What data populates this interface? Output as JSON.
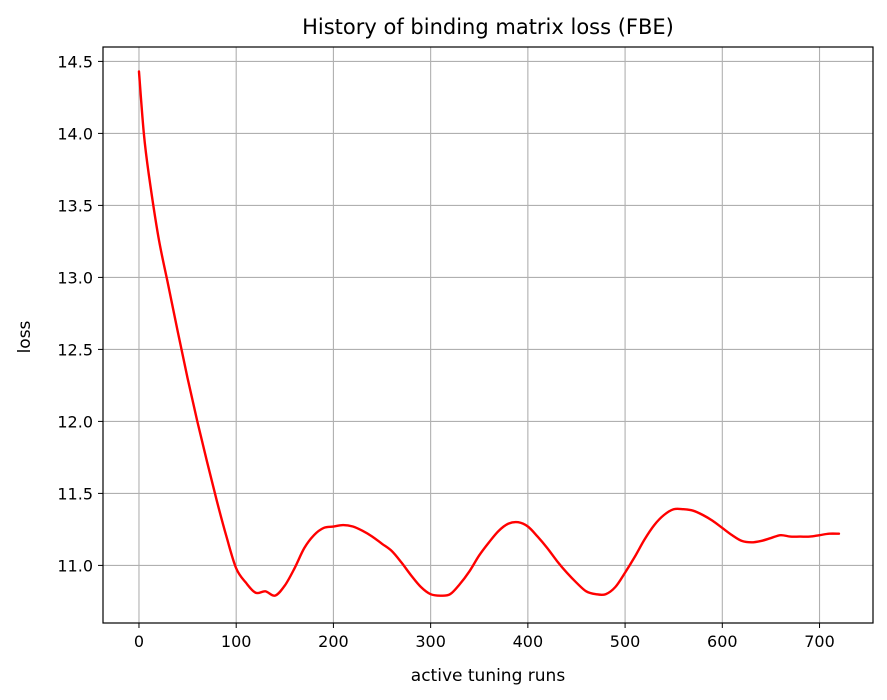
{
  "chart_data": {
    "type": "line",
    "title": "History of binding matrix loss (FBE)",
    "xlabel": "active tuning runs",
    "ylabel": "loss",
    "xlim": [
      -37,
      755
    ],
    "ylim": [
      10.6,
      14.6
    ],
    "xticks": [
      0,
      100,
      200,
      300,
      400,
      500,
      600,
      700
    ],
    "yticks": [
      11.0,
      11.5,
      12.0,
      12.5,
      13.0,
      13.5,
      14.0,
      14.5
    ],
    "ytick_labels": [
      "11.0",
      "11.5",
      "12.0",
      "12.5",
      "13.0",
      "13.5",
      "14.0",
      "14.5"
    ],
    "grid": true,
    "series": [
      {
        "color": "#ff0000",
        "x": [
          0,
          5,
          10,
          20,
          30,
          40,
          50,
          60,
          70,
          80,
          90,
          100,
          110,
          120,
          130,
          140,
          150,
          160,
          170,
          180,
          190,
          200,
          210,
          220,
          230,
          240,
          250,
          260,
          270,
          280,
          290,
          300,
          310,
          320,
          330,
          340,
          350,
          360,
          370,
          380,
          390,
          400,
          410,
          420,
          430,
          440,
          450,
          460,
          470,
          480,
          490,
          500,
          510,
          520,
          530,
          540,
          550,
          560,
          570,
          580,
          590,
          600,
          610,
          620,
          630,
          640,
          650,
          660,
          670,
          680,
          690,
          700,
          710,
          720
        ],
        "y": [
          14.43,
          14.0,
          13.72,
          13.28,
          12.95,
          12.62,
          12.3,
          12.0,
          11.72,
          11.45,
          11.2,
          10.98,
          10.88,
          10.81,
          10.82,
          10.79,
          10.86,
          10.98,
          11.12,
          11.21,
          11.26,
          11.27,
          11.28,
          11.27,
          11.24,
          11.2,
          11.15,
          11.1,
          11.02,
          10.93,
          10.85,
          10.8,
          10.79,
          10.8,
          10.87,
          10.96,
          11.07,
          11.16,
          11.24,
          11.29,
          11.3,
          11.27,
          11.2,
          11.12,
          11.03,
          10.95,
          10.88,
          10.82,
          10.8,
          10.8,
          10.85,
          10.95,
          11.06,
          11.18,
          11.28,
          11.35,
          11.39,
          11.39,
          11.38,
          11.35,
          11.31,
          11.26,
          11.21,
          11.17,
          11.16,
          11.17,
          11.19,
          11.21,
          11.2,
          11.2,
          11.2,
          11.21,
          11.22,
          11.22
        ]
      }
    ]
  }
}
